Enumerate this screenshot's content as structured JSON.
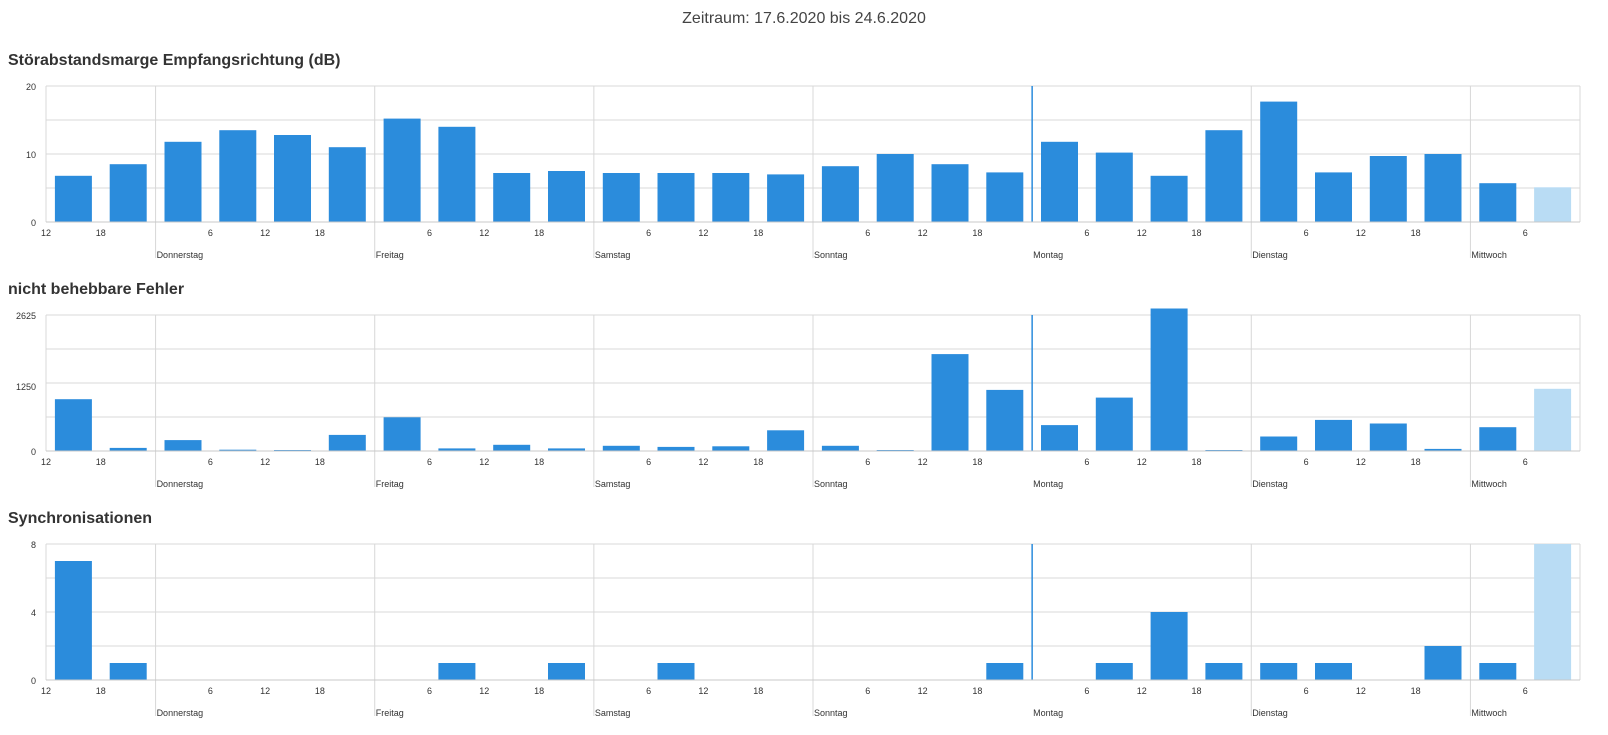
{
  "period": "Zeitraum: 17.6.2020 bis 24.6.2020",
  "colors": {
    "bar": "#2b8cdc",
    "bar_current": "#b9dcf4",
    "grid": "#d8d8d8",
    "now_line": "#2b8cdc"
  },
  "x_axis": {
    "hour_labels": [
      {
        "slot": 0,
        "label": "12"
      },
      {
        "slot": 1,
        "label": "18"
      },
      {
        "slot": 3,
        "label": "6"
      },
      {
        "slot": 4,
        "label": "12"
      },
      {
        "slot": 5,
        "label": "18"
      },
      {
        "slot": 7,
        "label": "6"
      },
      {
        "slot": 8,
        "label": "12"
      },
      {
        "slot": 9,
        "label": "18"
      },
      {
        "slot": 11,
        "label": "6"
      },
      {
        "slot": 12,
        "label": "12"
      },
      {
        "slot": 13,
        "label": "18"
      },
      {
        "slot": 15,
        "label": "6"
      },
      {
        "slot": 16,
        "label": "12"
      },
      {
        "slot": 17,
        "label": "18"
      },
      {
        "slot": 19,
        "label": "6"
      },
      {
        "slot": 20,
        "label": "12"
      },
      {
        "slot": 21,
        "label": "18"
      },
      {
        "slot": 23,
        "label": "6"
      },
      {
        "slot": 24,
        "label": "12"
      },
      {
        "slot": 25,
        "label": "18"
      },
      {
        "slot": 27,
        "label": "6"
      }
    ],
    "day_labels": [
      {
        "slot": 2,
        "label": "Donnerstag"
      },
      {
        "slot": 6,
        "label": "Freitag"
      },
      {
        "slot": 10,
        "label": "Samstag"
      },
      {
        "slot": 14,
        "label": "Sonntag"
      },
      {
        "slot": 18,
        "label": "Montag"
      },
      {
        "slot": 22,
        "label": "Dienstag"
      },
      {
        "slot": 26,
        "label": "Mittwoch"
      }
    ],
    "now_slot": 18
  },
  "chart_data": [
    {
      "type": "bar",
      "title": "Störabstandsmarge Empfangsrichtung (dB)",
      "ylim": [
        0,
        20
      ],
      "yticks": [
        0,
        10,
        20
      ],
      "values": [
        6.8,
        8.5,
        11.8,
        13.5,
        12.8,
        11.0,
        15.2,
        14.0,
        7.2,
        7.5,
        7.2,
        7.2,
        7.2,
        7.0,
        8.2,
        10.0,
        8.5,
        7.3,
        11.8,
        10.2,
        6.8,
        13.5,
        17.7,
        7.3,
        9.7,
        10.0,
        5.7,
        5.1
      ],
      "current_index": 27
    },
    {
      "type": "bar",
      "title": "nicht behebbare Fehler",
      "ylim": [
        0,
        2625
      ],
      "yticks": [
        0,
        1250,
        2625
      ],
      "values": [
        1000,
        60,
        210,
        25,
        20,
        310,
        650,
        50,
        120,
        50,
        100,
        80,
        90,
        400,
        100,
        10,
        1870,
        1180,
        500,
        1030,
        2750,
        15,
        280,
        600,
        530,
        40,
        460,
        1200
      ],
      "current_index": 27
    },
    {
      "type": "bar",
      "title": "Synchronisationen",
      "ylim": [
        0,
        8
      ],
      "yticks": [
        0,
        4,
        8
      ],
      "values": [
        7,
        1,
        0,
        0,
        0,
        0,
        0,
        1,
        0,
        1,
        0,
        1,
        0,
        0,
        0,
        0,
        0,
        1,
        0,
        1,
        4,
        1,
        1,
        1,
        0,
        2,
        1,
        8
      ],
      "current_index": 27
    }
  ]
}
